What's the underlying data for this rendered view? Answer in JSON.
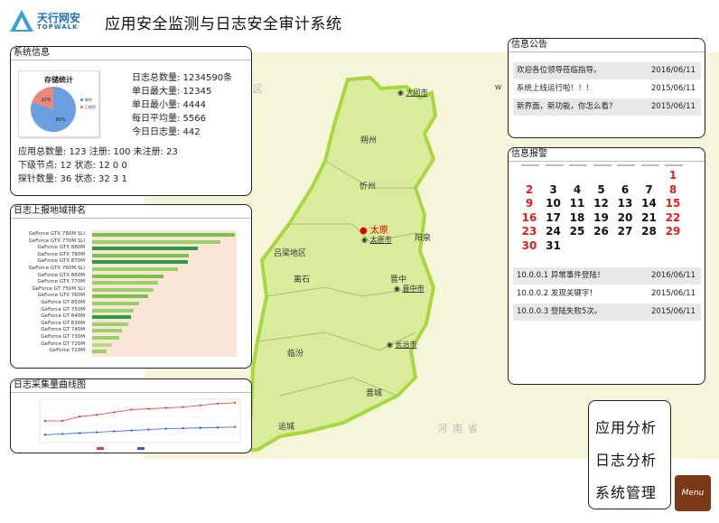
{
  "header": {
    "logo_cn": "天行网安",
    "logo_en": "TOPWALK",
    "title": "应用安全监测与日志安全审计系统"
  },
  "sysinfo": {
    "title": "系统信息",
    "pie": {
      "title": "存储统计",
      "slices": [
        {
          "label": "剩余",
          "pct": 80,
          "color": "#6a9fe0",
          "text": "80%"
        },
        {
          "label": "已使用",
          "pct": 20,
          "color": "#e8897a",
          "text": "20%"
        }
      ]
    },
    "stats": [
      "日志总数量: 1234590条",
      "单日最大量: 12345",
      "单日最小量: 4444",
      "每日平均量: 5566",
      "今日日志量: 442"
    ],
    "lines": [
      "应用总数量: 123 注册: 100 未注册: 23",
      "下级节点: 12 状态: 12 0 0",
      "探针数量: 36 状态: 32 3 1"
    ]
  },
  "region": {
    "title": "日志上报地域排名",
    "chart_data": {
      "type": "bar",
      "orientation": "horizontal",
      "categories": [
        "GeForce GTX 780M SLI",
        "GeForce GTX 770M SLI",
        "GeForce GTX 880M",
        "GeForce GTX 780M",
        "GeForce GTX 870M",
        "GeForce GTX 760M SLI",
        "GeForce GTX 860M",
        "GeForce GTX 770M",
        "GeForce GT 750M SLI",
        "GeForce GTX 760M",
        "GeForce GT 850M",
        "GeForce GT 750M",
        "GeForce GT 840M",
        "GeForce GT 830M",
        "GeForce GT 740M",
        "GeForce GT 730M",
        "GeForce GT 720M",
        "GeForce 710M"
      ],
      "values": [
        100,
        90,
        74,
        68,
        67,
        60,
        50,
        46,
        43,
        39,
        33,
        29,
        27,
        25,
        21,
        19,
        14,
        10
      ],
      "colors": [
        "#7cc04a",
        "#9ad06a",
        "#2e9a48",
        "#7cc04a",
        "#2e9a48",
        "#9ad06a",
        "#7cc04a",
        "#9ad06a",
        "#9ad06a",
        "#7cc04a",
        "#9ad06a",
        "#9ad06a",
        "#2e9a48",
        "#9ad06a",
        "#9ad06a",
        "#9ad06a",
        "#b8d888",
        "#9ad06a"
      ]
    }
  },
  "curve": {
    "title": "日志采集量曲线图",
    "chart_data": {
      "type": "line",
      "x": [
        1,
        2,
        3,
        4,
        5,
        6,
        7,
        8,
        9,
        10,
        11,
        12
      ],
      "series": [
        {
          "values": [
            50,
            50,
            60,
            64,
            70,
            76,
            78,
            80,
            82,
            86,
            90,
            92
          ],
          "color": "#e04040"
        },
        {
          "values": [
            18,
            20,
            22,
            24,
            26,
            28,
            30,
            32,
            33,
            34,
            35,
            36
          ],
          "color": "#3060d0"
        }
      ],
      "ylim": [
        0,
        100
      ]
    }
  },
  "notice": {
    "title": "信息公告",
    "rows": [
      {
        "text": "欢迎各位领导莅临指导。",
        "date": "2016/06/11"
      },
      {
        "text": "系统上线运行啦！！！",
        "date": "2015/06/11"
      },
      {
        "text": "新界面，新功能，你怎么看？",
        "date": "2015/06/11"
      }
    ]
  },
  "alarm": {
    "title": "信息报警",
    "calendar": [
      "",
      "",
      "",
      "",
      "",
      "",
      "1",
      "2",
      "3",
      "4",
      "5",
      "6",
      "7",
      "8",
      "9",
      "10",
      "11",
      "12",
      "13",
      "14",
      "15",
      "16",
      "17",
      "18",
      "19",
      "20",
      "21",
      "22",
      "23",
      "24",
      "25",
      "26",
      "27",
      "28",
      "29",
      "30",
      "31"
    ],
    "rows": [
      {
        "text": "10.0.0.1 异常事件登陆！",
        "date": "2016/06/11"
      },
      {
        "text": "10.0.0.2 发现关键字！",
        "date": "2015/06/11"
      },
      {
        "text": "10.0.0.3 登陆失败5次。",
        "date": "2015/06/11"
      }
    ]
  },
  "map": {
    "labels": {
      "inner_mongolia": "蒙古自治区",
      "henan": "河南省",
      "shuozhou": "朔州",
      "xinzhou": "忻州",
      "luliang": "吕梁地区",
      "yangquan": "阳泉",
      "lishi": "离石",
      "jinzhong": "晋中",
      "linfen": "临汾",
      "jincheng": "晋城",
      "yuncheng": "运城"
    },
    "cities": {
      "datong": "大同市",
      "taiyuan_capital": "太原",
      "taiyuan": "太原市",
      "jinzhong": "晋中市",
      "changzhi": "长治市"
    },
    "compass": "W"
  },
  "menu": {
    "items": [
      "应用分析",
      "日志分析",
      "系统管理"
    ],
    "icon_label": "Menu"
  }
}
